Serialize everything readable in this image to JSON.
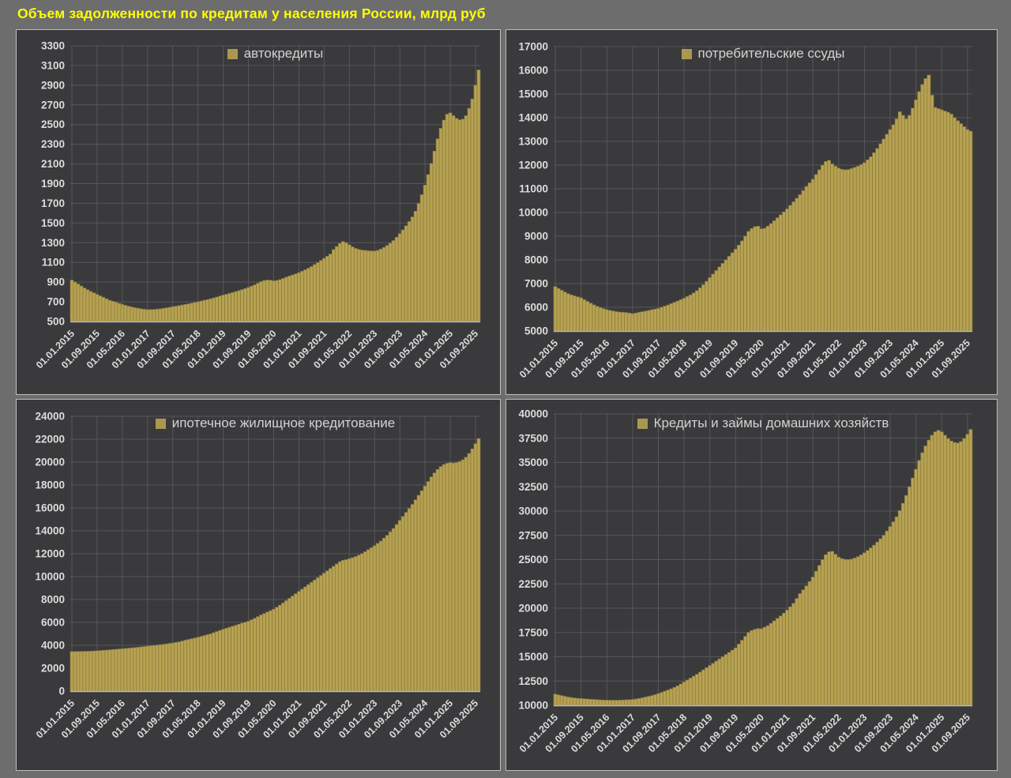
{
  "page": {
    "title": "Объем задолженности по кредитам у населения России, млрд руб",
    "title_color": "#ffff00",
    "background_color": "#6d6d6d",
    "panel_background": "#3a3a3c",
    "panel_border_color": "#bdbdbd",
    "bar_color": "#b7a251",
    "bar_edge_color": "#8a7940",
    "grid_color": "#57575b",
    "baseline_color": "#b9b9b9",
    "axis_text_color": "#dcdcdc",
    "legend_text_color": "#d2d2d2",
    "legend_swatch_color": "#ab9850"
  },
  "x_axis": {
    "tick_labels": [
      "01.01.2015",
      "01.09.2015",
      "01.05.2016",
      "01.01.2017",
      "01.09.2017",
      "01.05.2018",
      "01.01.2019",
      "01.09.2019",
      "01.05.2020",
      "01.01.2021",
      "01.09.2021",
      "01.05.2022",
      "01.01.2023",
      "01.09.2023",
      "01.05.2024",
      "01.01.2025",
      "01.09.2025"
    ],
    "tick_every_months": 8,
    "start_month": "01.01.2015",
    "end_month": "01.10.2025",
    "frequency": "monthly"
  },
  "chart_data": [
    {
      "type": "bar",
      "id": "auto-loans",
      "legend": "автокредиты",
      "ylim": [
        500,
        3300
      ],
      "ystep": 200,
      "values": [
        920,
        900,
        880,
        860,
        840,
        822,
        805,
        790,
        775,
        760,
        745,
        730,
        715,
        705,
        695,
        684,
        673,
        664,
        655,
        647,
        640,
        634,
        628,
        624,
        620,
        621,
        622,
        625,
        628,
        633,
        638,
        644,
        650,
        655,
        661,
        667,
        673,
        679,
        686,
        693,
        700,
        707,
        715,
        722,
        730,
        739,
        748,
        758,
        768,
        776,
        785,
        794,
        803,
        813,
        823,
        834,
        845,
        858,
        872,
        888,
        905,
        915,
        920,
        918,
        913,
        916,
        925,
        937,
        950,
        961,
        972,
        983,
        995,
        1010,
        1025,
        1041,
        1058,
        1078,
        1098,
        1119,
        1140,
        1162,
        1185,
        1230,
        1262,
        1292,
        1312,
        1300,
        1278,
        1258,
        1242,
        1232,
        1225,
        1222,
        1218,
        1216,
        1215,
        1222,
        1235,
        1252,
        1272,
        1295,
        1322,
        1355,
        1392,
        1430,
        1472,
        1515,
        1562,
        1620,
        1700,
        1788,
        1885,
        1992,
        2105,
        2230,
        2355,
        2462,
        2545,
        2605,
        2618,
        2590,
        2562,
        2548,
        2555,
        2590,
        2665,
        2760,
        2900,
        3055
      ]
    },
    {
      "type": "bar",
      "id": "consumer-loans",
      "legend": "потребительские ссуды",
      "ylim": [
        5000,
        17000
      ],
      "ystep": 1000,
      "values": [
        6870,
        6790,
        6715,
        6640,
        6570,
        6520,
        6475,
        6435,
        6400,
        6320,
        6245,
        6170,
        6100,
        6040,
        5985,
        5940,
        5900,
        5865,
        5840,
        5815,
        5795,
        5785,
        5775,
        5755,
        5725,
        5755,
        5785,
        5810,
        5835,
        5865,
        5895,
        5920,
        5950,
        5995,
        6045,
        6095,
        6150,
        6205,
        6260,
        6320,
        6380,
        6450,
        6520,
        6605,
        6700,
        6820,
        6950,
        7095,
        7250,
        7400,
        7550,
        7700,
        7850,
        8000,
        8150,
        8300,
        8450,
        8620,
        8800,
        9000,
        9200,
        9320,
        9400,
        9420,
        9310,
        9330,
        9420,
        9530,
        9650,
        9775,
        9900,
        10025,
        10150,
        10300,
        10450,
        10600,
        10750,
        10920,
        11100,
        11250,
        11400,
        11600,
        11800,
        12000,
        12150,
        12200,
        12050,
        11950,
        11870,
        11820,
        11800,
        11810,
        11850,
        11900,
        11950,
        12020,
        12100,
        12220,
        12350,
        12520,
        12700,
        12900,
        13100,
        13300,
        13500,
        13700,
        13950,
        14250,
        14100,
        13950,
        14100,
        14400,
        14750,
        15100,
        15400,
        15650,
        15800,
        14950,
        14430,
        14380,
        14330,
        14280,
        14230,
        14150,
        14000,
        13870,
        13750,
        13620,
        13500,
        13430
      ]
    },
    {
      "type": "bar",
      "id": "mortgage",
      "legend": "ипотечное жилищное кредитование",
      "ylim": [
        0,
        24000
      ],
      "ystep": 2000,
      "values": [
        3450,
        3455,
        3460,
        3465,
        3470,
        3480,
        3490,
        3505,
        3520,
        3540,
        3560,
        3580,
        3600,
        3625,
        3650,
        3675,
        3700,
        3725,
        3750,
        3775,
        3800,
        3830,
        3862,
        3895,
        3930,
        3960,
        3990,
        4020,
        4050,
        4085,
        4120,
        4160,
        4200,
        4250,
        4300,
        4370,
        4450,
        4510,
        4570,
        4635,
        4700,
        4775,
        4850,
        4925,
        5000,
        5100,
        5200,
        5300,
        5400,
        5490,
        5580,
        5665,
        5750,
        5840,
        5930,
        6015,
        6100,
        6225,
        6350,
        6500,
        6650,
        6775,
        6900,
        7025,
        7150,
        7325,
        7500,
        7700,
        7900,
        8100,
        8300,
        8500,
        8700,
        8900,
        9100,
        9300,
        9500,
        9700,
        9900,
        10100,
        10300,
        10500,
        10700,
        10900,
        11100,
        11300,
        11420,
        11480,
        11560,
        11650,
        11750,
        11870,
        12000,
        12170,
        12350,
        12520,
        12700,
        12900,
        13100,
        13350,
        13600,
        13900,
        14200,
        14550,
        14900,
        15250,
        15600,
        15950,
        16300,
        16700,
        17100,
        17500,
        17900,
        18300,
        18700,
        19050,
        19350,
        19600,
        19780,
        19890,
        19950,
        19910,
        19960,
        20050,
        20200,
        20420,
        20750,
        21150,
        21600,
        22050
      ]
    },
    {
      "type": "bar",
      "id": "household-loans",
      "legend": "Кредиты и займы домашних хозяйств",
      "ylim": [
        10000,
        40000
      ],
      "ystep": 2500,
      "values": [
        11150,
        11070,
        11000,
        10925,
        10850,
        10800,
        10755,
        10725,
        10700,
        10672,
        10648,
        10622,
        10600,
        10578,
        10558,
        10542,
        10530,
        10524,
        10520,
        10524,
        10532,
        10545,
        10565,
        10580,
        10600,
        10645,
        10700,
        10770,
        10850,
        10922,
        11000,
        11095,
        11200,
        11320,
        11450,
        11570,
        11700,
        11845,
        12000,
        12195,
        12400,
        12600,
        12800,
        13000,
        13200,
        13420,
        13650,
        13870,
        14100,
        14325,
        14550,
        14775,
        15000,
        15225,
        15450,
        15675,
        15900,
        16300,
        16700,
        17100,
        17500,
        17700,
        17820,
        17900,
        17880,
        18030,
        18200,
        18440,
        18700,
        18945,
        19200,
        19490,
        19800,
        20140,
        20500,
        20990,
        21500,
        21890,
        22300,
        22740,
        23200,
        23800,
        24400,
        25000,
        25500,
        25800,
        25850,
        25550,
        25250,
        25100,
        25020,
        25000,
        25050,
        25160,
        25300,
        25490,
        25700,
        25940,
        26200,
        26490,
        26800,
        27140,
        27500,
        27940,
        28400,
        28890,
        29400,
        30050,
        30800,
        31600,
        32500,
        33400,
        34300,
        35200,
        36000,
        36700,
        37300,
        37800,
        38150,
        38300,
        38150,
        37800,
        37450,
        37200,
        37050,
        37000,
        37150,
        37450,
        37900,
        38400
      ]
    }
  ]
}
